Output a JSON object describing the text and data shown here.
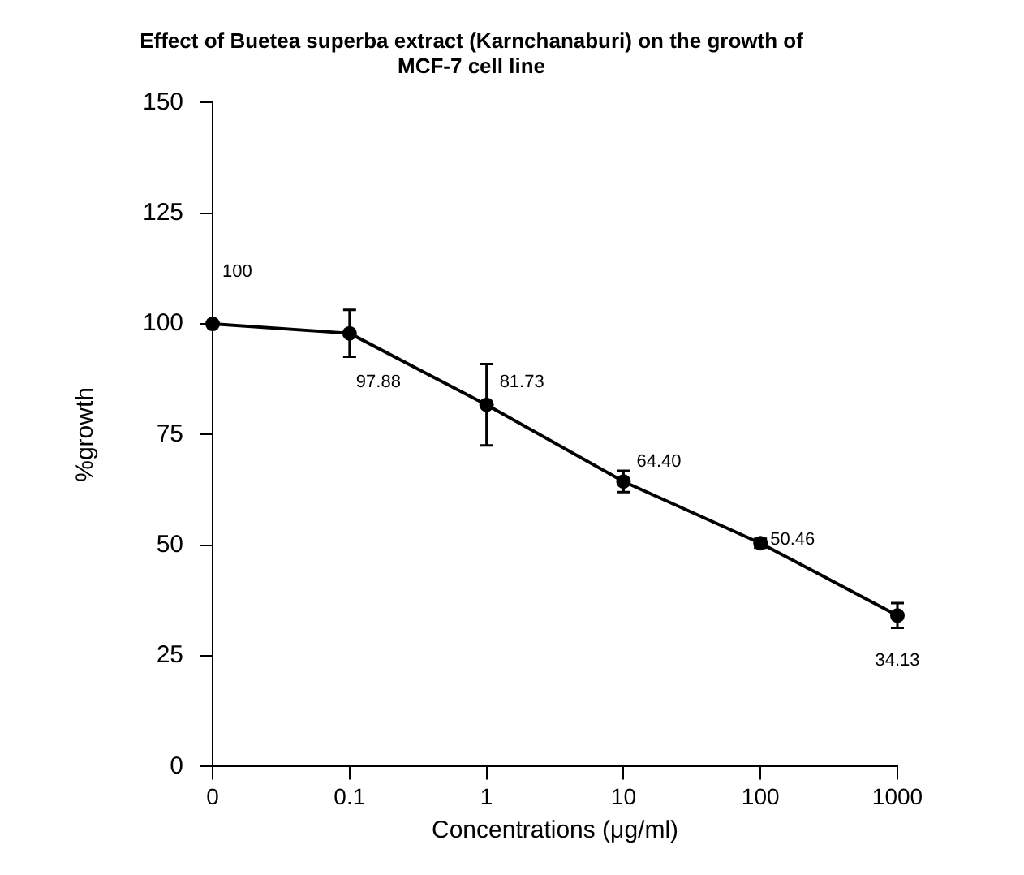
{
  "chart_data": {
    "type": "line",
    "title": [
      "Effect of Buetea superba extract (Karnchanaburi) on the growth of",
      "MCF-7 cell line"
    ],
    "xlabel": "Concentrations (μg/ml)",
    "ylabel": "%growth",
    "categories": [
      "0",
      "0.1",
      "1",
      "10",
      "100",
      "1000"
    ],
    "values": [
      100,
      97.88,
      81.73,
      64.4,
      50.46,
      34.13
    ],
    "errors": [
      null,
      5.3,
      9.2,
      2.4,
      1,
      2.8
    ],
    "value_labels": [
      "100",
      "97.88",
      "81.73",
      "64.40",
      "50.46",
      "34.13"
    ],
    "color": "#000000",
    "marker": "circle",
    "line_style": "solid",
    "grid": false,
    "legend": false,
    "ylim": [
      0,
      150
    ],
    "yticks": [
      0,
      25,
      50,
      75,
      100,
      125,
      150
    ]
  }
}
